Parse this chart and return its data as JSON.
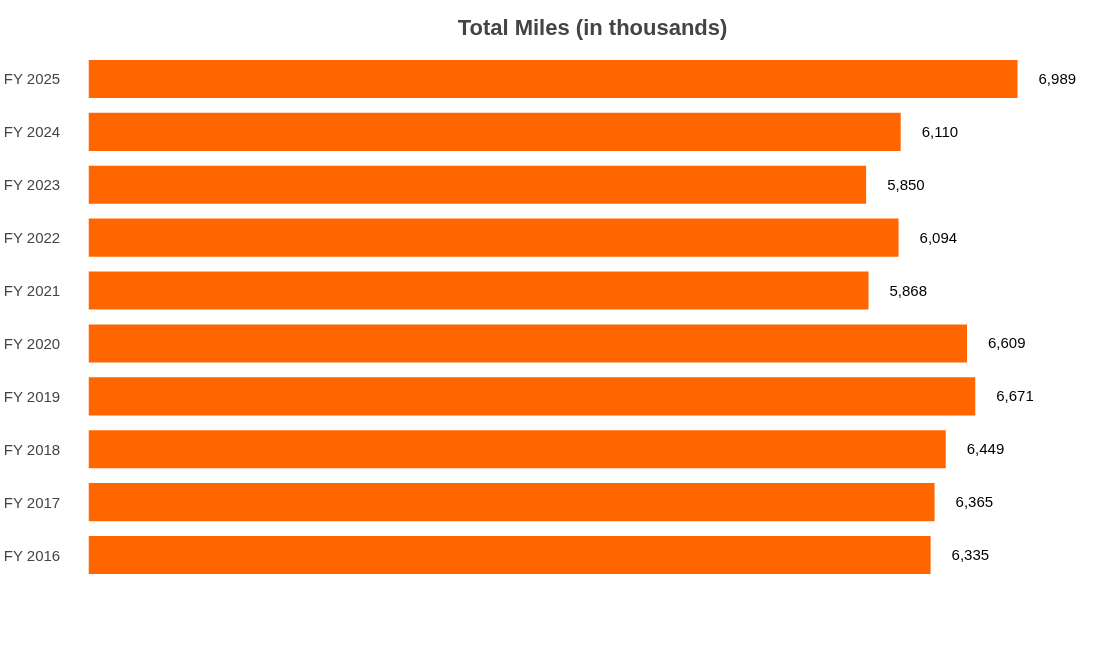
{
  "chart_data": {
    "type": "bar",
    "orientation": "horizontal",
    "title": "Total Miles (in thousands)",
    "categories": [
      "FY 2025",
      "FY 2024",
      "FY 2023",
      "FY 2022",
      "FY 2021",
      "FY 2020",
      "FY 2019",
      "FY 2018",
      "FY 2017",
      "FY 2016"
    ],
    "values": [
      6989,
      6110,
      5850,
      6094,
      5868,
      6609,
      6671,
      6449,
      6365,
      6335
    ],
    "value_labels": [
      "6,989",
      "6,110",
      "5,850",
      "6,094",
      "5,868",
      "6,609",
      "6,671",
      "6,449",
      "6,365",
      "6,335"
    ],
    "color": "#ff6600",
    "tick_labels": "y",
    "grid": false
  }
}
